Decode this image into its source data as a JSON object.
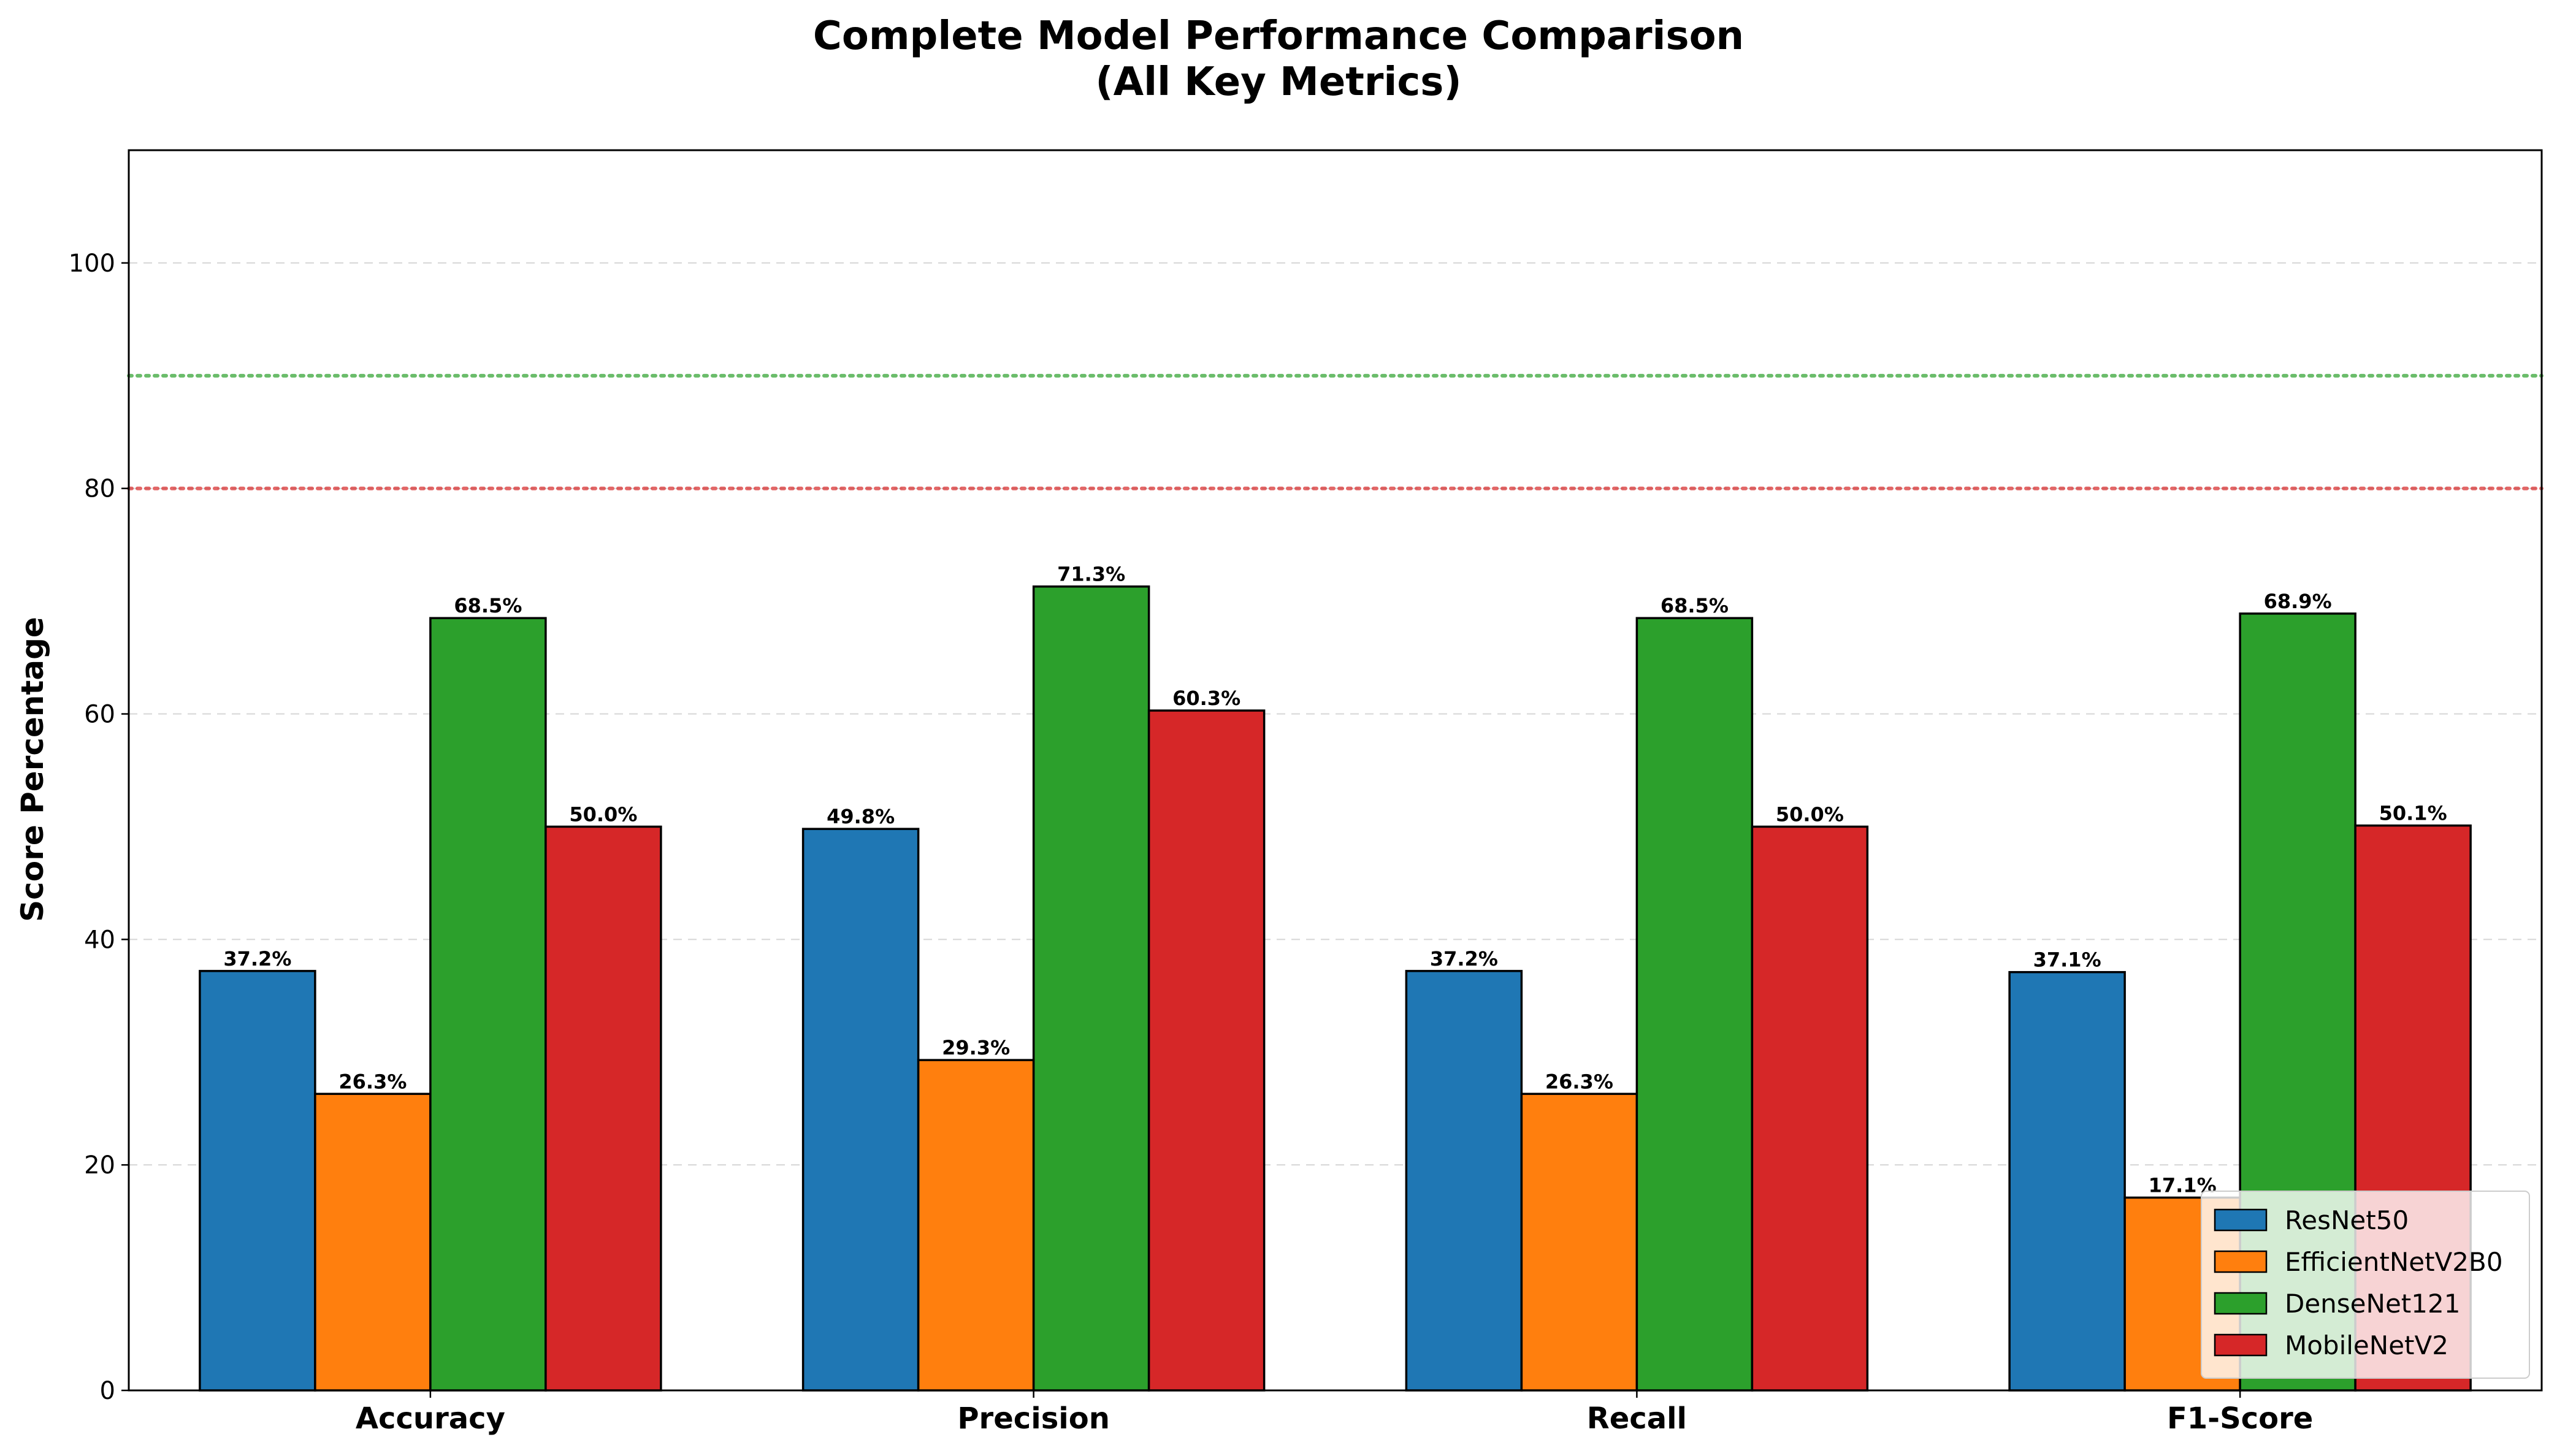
{
  "chart_data": {
    "type": "bar",
    "title_line1": "Complete Model Performance Comparison",
    "title_line2": "(All Key Metrics)",
    "xlabel": "",
    "ylabel": "Score Percentage",
    "categories": [
      "Accuracy",
      "Precision",
      "Recall",
      "F1-Score"
    ],
    "series": [
      {
        "name": "ResNet50",
        "color": "#1f77b4",
        "values": [
          37.2,
          49.8,
          37.2,
          37.1
        ],
        "labels": [
          "37.2%",
          "49.8%",
          "37.2%",
          "37.1%"
        ]
      },
      {
        "name": "EfficientNetV2B0",
        "color": "#ff7f0e",
        "values": [
          26.3,
          29.3,
          26.3,
          17.1
        ],
        "labels": [
          "26.3%",
          "29.3%",
          "26.3%",
          "17.1%"
        ]
      },
      {
        "name": "DenseNet121",
        "color": "#2ca02c",
        "values": [
          68.5,
          71.3,
          68.5,
          68.9
        ],
        "labels": [
          "68.5%",
          "71.3%",
          "68.5%",
          "68.9%"
        ]
      },
      {
        "name": "MobileNetV2",
        "color": "#d62728",
        "values": [
          50.0,
          60.3,
          50.0,
          50.1
        ],
        "labels": [
          "50.0%",
          "60.3%",
          "50.0%",
          "50.1%"
        ]
      }
    ],
    "ylim": [
      0,
      110
    ],
    "yticks": [
      0,
      20,
      40,
      60,
      80,
      100
    ],
    "ytick_labels": [
      "0",
      "20",
      "40",
      "60",
      "80",
      "100"
    ],
    "reference_lines": [
      {
        "value": 90,
        "color": "#2ca02c",
        "style": "dotted"
      },
      {
        "value": 80,
        "color": "#d62728",
        "style": "dotted"
      }
    ],
    "grid": "y-dashed",
    "legend_position": "lower-right"
  }
}
